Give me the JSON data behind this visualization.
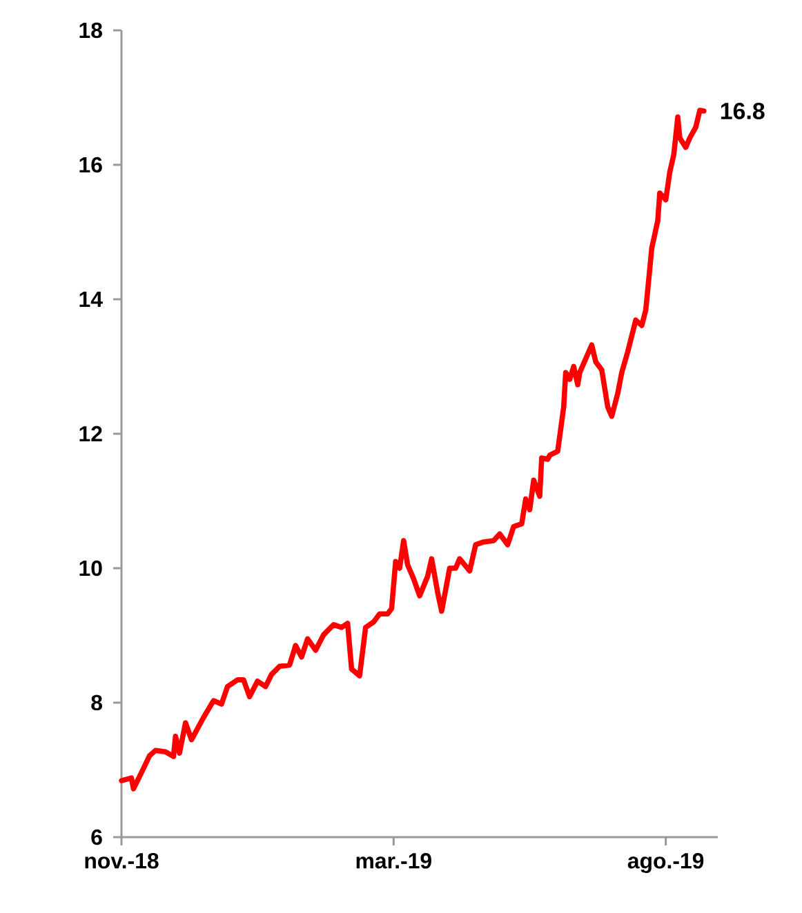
{
  "chart_data": {
    "type": "line",
    "x": [
      "2018-11-15",
      "2018-11-20",
      "2018-11-21",
      "2018-11-25",
      "2018-11-29",
      "2018-12-02",
      "2018-12-07",
      "2018-12-11",
      "2018-12-12",
      "2018-12-14",
      "2018-12-17",
      "2018-12-20",
      "2018-12-26",
      "2018-12-31",
      "2019-01-04",
      "2019-01-07",
      "2019-01-12",
      "2019-01-15",
      "2019-01-18",
      "2019-01-22",
      "2019-01-26",
      "2019-01-29",
      "2019-02-02",
      "2019-02-07",
      "2019-02-10",
      "2019-02-13",
      "2019-02-16",
      "2019-02-20",
      "2019-02-24",
      "2019-03-01",
      "2019-03-05",
      "2019-03-08",
      "2019-03-10",
      "2019-03-14",
      "2019-03-17",
      "2019-03-21",
      "2019-03-24",
      "2019-03-28",
      "2019-03-30",
      "2019-04-01",
      "2019-04-03",
      "2019-04-05",
      "2019-04-07",
      "2019-04-10",
      "2019-04-13",
      "2019-04-17",
      "2019-04-19",
      "2019-04-22",
      "2019-04-24",
      "2019-04-28",
      "2019-05-01",
      "2019-05-03",
      "2019-05-08",
      "2019-05-11",
      "2019-05-15",
      "2019-05-20",
      "2019-05-23",
      "2019-05-27",
      "2019-05-30",
      "2019-06-03",
      "2019-06-05",
      "2019-06-07",
      "2019-06-09",
      "2019-06-12",
      "2019-06-13",
      "2019-06-16",
      "2019-06-17",
      "2019-06-21",
      "2019-06-24",
      "2019-06-25",
      "2019-06-27",
      "2019-06-29",
      "2019-07-01",
      "2019-07-02",
      "2019-07-08",
      "2019-07-10",
      "2019-07-13",
      "2019-07-16",
      "2019-07-18",
      "2019-07-21",
      "2019-07-23",
      "2019-07-26",
      "2019-07-30",
      "2019-08-02",
      "2019-08-04",
      "2019-08-06",
      "2019-08-07",
      "2019-08-10",
      "2019-08-11",
      "2019-08-14",
      "2019-08-16",
      "2019-08-18",
      "2019-08-20",
      "2019-08-21",
      "2019-08-24",
      "2019-08-26",
      "2019-08-29",
      "2019-08-31",
      "2019-09-02"
    ],
    "series": [
      {
        "color": "#ff0000",
        "values": [
          6.84,
          6.88,
          6.72,
          6.96,
          7.21,
          7.29,
          7.27,
          7.2,
          7.5,
          7.25,
          7.7,
          7.45,
          7.78,
          8.03,
          7.98,
          8.24,
          8.34,
          8.34,
          8.09,
          8.32,
          8.24,
          8.42,
          8.54,
          8.56,
          8.85,
          8.68,
          8.95,
          8.78,
          9.01,
          9.16,
          9.12,
          9.18,
          8.5,
          8.4,
          9.12,
          9.2,
          9.32,
          9.32,
          9.4,
          10.1,
          10.0,
          10.41,
          10.05,
          9.84,
          9.59,
          9.88,
          10.14,
          9.64,
          9.36,
          10.0,
          10.0,
          10.14,
          9.96,
          10.35,
          10.39,
          10.41,
          10.51,
          10.35,
          10.62,
          10.66,
          11.03,
          10.87,
          11.31,
          11.07,
          11.64,
          11.62,
          11.68,
          11.74,
          12.4,
          12.91,
          12.81,
          13.0,
          12.73,
          12.91,
          13.32,
          13.07,
          12.95,
          12.4,
          12.26,
          12.6,
          12.91,
          13.22,
          13.69,
          13.61,
          13.84,
          14.45,
          14.76,
          15.17,
          15.58,
          15.48,
          15.89,
          16.15,
          16.71,
          16.4,
          16.26,
          16.4,
          16.56,
          16.81,
          16.8
        ]
      }
    ],
    "xlim": [
      "2018-11-15",
      "2019-09-09"
    ],
    "ylim": [
      6,
      18
    ],
    "xticks": [
      {
        "value": "2018-11-15",
        "label": "nov.-18"
      },
      {
        "value": "2019-03-31",
        "label": "mar.-19"
      },
      {
        "value": "2019-08-14",
        "label": "ago.-19"
      }
    ],
    "yticks": [
      6,
      8,
      10,
      12,
      14,
      16,
      18
    ],
    "annotations": [
      {
        "text": "16.8",
        "x": "2019-09-02",
        "y": 16.8
      }
    ]
  }
}
